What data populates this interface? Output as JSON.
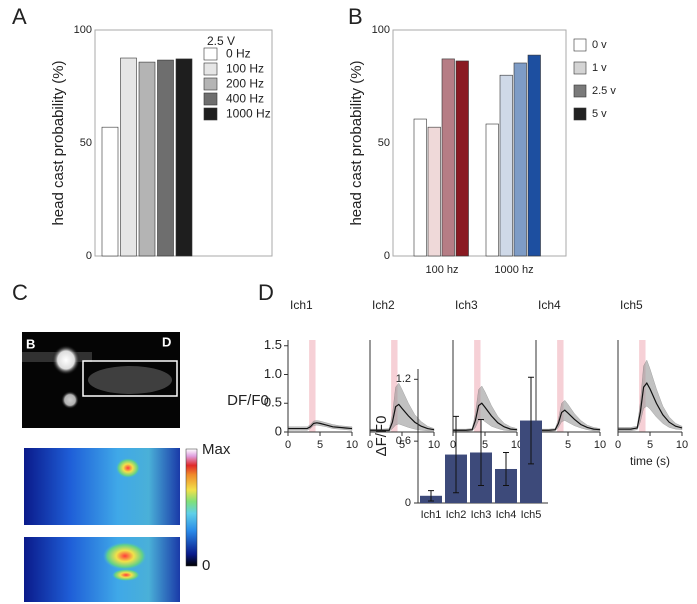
{
  "panel_labels": [
    "A",
    "B",
    "C",
    "D"
  ],
  "image_panel": {
    "markers": [
      "B",
      "D"
    ],
    "colorbar": [
      "Max",
      "0"
    ]
  },
  "chart_data": [
    {
      "type": "bar",
      "ylabel": "head cast probability (%)",
      "legend_title": "2.5 V",
      "categories": [
        "0 Hz",
        "100 Hz",
        "200 Hz",
        "400 Hz",
        "1000 Hz"
      ],
      "values": [
        57,
        87.6,
        85.8,
        86.7,
        87.2
      ],
      "colors": [
        "#ffffff",
        "#e6e6e6",
        "#b4b4b4",
        "#6e6e6e",
        "#1e1e1e"
      ],
      "ylim": [
        0,
        100
      ],
      "yticks": [
        0,
        50,
        100
      ]
    },
    {
      "type": "grouped-bar",
      "ylabel": "head cast probability (%)",
      "categories": [
        "100 hz",
        "1000 hz"
      ],
      "series": [
        {
          "name": "0 v",
          "color": "#ffffff",
          "bar_colors": [
            "#ffffff",
            "#ffffff"
          ],
          "values": [
            60.6,
            58.4
          ]
        },
        {
          "name": "1 v",
          "color": "#d4d4d4",
          "bar_colors": [
            "#efd9d9",
            "#cfd9e8"
          ],
          "values": [
            57,
            80
          ]
        },
        {
          "name": "2.5 v",
          "color": "#7a7a7a",
          "bar_colors": [
            "#b67d85",
            "#7e9cc6"
          ],
          "values": [
            87.2,
            85.4
          ]
        },
        {
          "name": "5 v",
          "color": "#222222",
          "bar_colors": [
            "#8a1a22",
            "#1d4fa0"
          ],
          "values": [
            86.3,
            88.9
          ]
        }
      ],
      "ylim": [
        0,
        100
      ],
      "yticks": [
        0,
        50,
        100
      ]
    },
    {
      "type": "line",
      "title": "Ich1",
      "ylabel": "DF/F0",
      "highlight_x": [
        3.3,
        4.3
      ],
      "x": [
        0,
        1,
        2,
        3,
        3.5,
        4,
        4.5,
        5,
        6,
        7,
        8,
        9,
        10
      ],
      "values": [
        0.06,
        0.06,
        0.06,
        0.06,
        0.09,
        0.15,
        0.16,
        0.15,
        0.12,
        0.09,
        0.08,
        0.07,
        0.06
      ],
      "upper": [
        0.09,
        0.09,
        0.09,
        0.09,
        0.13,
        0.19,
        0.2,
        0.19,
        0.16,
        0.13,
        0.11,
        0.1,
        0.09
      ],
      "lower": [
        0.03,
        0.03,
        0.03,
        0.03,
        0.06,
        0.11,
        0.12,
        0.11,
        0.09,
        0.06,
        0.05,
        0.04,
        0.03
      ],
      "xlim": [
        0,
        10
      ],
      "xticks": [
        0,
        5,
        10
      ],
      "ylim": [
        0,
        1.6
      ],
      "yticks": [
        0,
        0.5,
        {
          "value": 1,
          "label": "1.0"
        },
        1.5
      ]
    },
    {
      "type": "line",
      "title": "Ich2",
      "highlight_x": [
        3.3,
        4.3
      ],
      "x": [
        0,
        1,
        2,
        3,
        3.5,
        4,
        4.5,
        5,
        6,
        7,
        8,
        9,
        10
      ],
      "values": [
        0.03,
        0.03,
        0.03,
        0.03,
        0.17,
        0.44,
        0.48,
        0.41,
        0.28,
        0.17,
        0.1,
        0.06,
        0.04
      ],
      "upper": [
        0.05,
        0.05,
        0.05,
        0.06,
        0.3,
        0.78,
        0.85,
        0.74,
        0.5,
        0.3,
        0.18,
        0.1,
        0.06
      ],
      "lower": [
        0.01,
        0.01,
        0.01,
        0.01,
        0.06,
        0.12,
        0.14,
        0.12,
        0.08,
        0.05,
        0.03,
        0.02,
        0.02
      ],
      "xlim": [
        0,
        10
      ],
      "xticks": [
        0,
        5,
        10
      ],
      "ylim": [
        0,
        1.6
      ]
    },
    {
      "type": "line",
      "title": "Ich3",
      "highlight_x": [
        3.3,
        4.3
      ],
      "x": [
        0,
        1,
        2,
        3,
        3.5,
        4,
        4.5,
        5,
        6,
        7,
        8,
        9,
        10
      ],
      "values": [
        0.03,
        0.03,
        0.03,
        0.04,
        0.2,
        0.46,
        0.5,
        0.43,
        0.28,
        0.16,
        0.09,
        0.05,
        0.04
      ],
      "upper": [
        0.05,
        0.05,
        0.05,
        0.06,
        0.32,
        0.74,
        0.8,
        0.7,
        0.46,
        0.27,
        0.15,
        0.09,
        0.06
      ],
      "lower": [
        0.01,
        0.01,
        0.01,
        0.02,
        0.08,
        0.2,
        0.22,
        0.18,
        0.1,
        0.06,
        0.03,
        0.02,
        0.02
      ],
      "xlim": [
        0,
        10
      ],
      "xticks": [
        0,
        5,
        10
      ],
      "ylim": [
        0,
        1.6
      ]
    },
    {
      "type": "line",
      "title": "Ich4",
      "highlight_x": [
        3.3,
        4.3
      ],
      "x": [
        0,
        1,
        2,
        3,
        3.5,
        4,
        4.5,
        5,
        6,
        7,
        8,
        9,
        10
      ],
      "values": [
        0.03,
        0.03,
        0.03,
        0.04,
        0.15,
        0.34,
        0.38,
        0.33,
        0.22,
        0.13,
        0.08,
        0.05,
        0.04
      ],
      "upper": [
        0.05,
        0.05,
        0.05,
        0.06,
        0.22,
        0.5,
        0.55,
        0.48,
        0.32,
        0.2,
        0.12,
        0.08,
        0.06
      ],
      "lower": [
        0.01,
        0.01,
        0.01,
        0.02,
        0.08,
        0.18,
        0.2,
        0.17,
        0.11,
        0.07,
        0.04,
        0.02,
        0.02
      ],
      "xlim": [
        0,
        10
      ],
      "xticks": [
        0,
        5,
        10
      ],
      "ylim": [
        0,
        1.6
      ]
    },
    {
      "type": "line",
      "title": "Ich5",
      "xlabel": "time (s)",
      "highlight_x": [
        3.3,
        4.3
      ],
      "x": [
        0,
        1,
        2,
        3,
        3.5,
        4,
        4.5,
        5,
        6,
        7,
        8,
        9,
        10
      ],
      "values": [
        0.05,
        0.05,
        0.05,
        0.07,
        0.35,
        0.78,
        0.85,
        0.75,
        0.5,
        0.3,
        0.17,
        0.1,
        0.07
      ],
      "upper": [
        0.08,
        0.08,
        0.08,
        0.1,
        0.52,
        1.15,
        1.25,
        1.1,
        0.75,
        0.45,
        0.26,
        0.15,
        0.1
      ],
      "lower": [
        0.02,
        0.02,
        0.02,
        0.04,
        0.18,
        0.41,
        0.45,
        0.4,
        0.26,
        0.15,
        0.08,
        0.05,
        0.04
      ],
      "xlim": [
        0,
        10
      ],
      "xticks": [
        0,
        5,
        10
      ],
      "ylim": [
        0,
        1.6
      ]
    },
    {
      "type": "error-bar",
      "ylabel": "ΔF/F0",
      "categories": [
        "Ich1",
        "Ich2",
        "Ich3",
        "Ich4",
        "Ich5"
      ],
      "values": [
        0.07,
        0.47,
        0.49,
        0.33,
        0.8
      ],
      "errors": [
        0.05,
        0.37,
        0.32,
        0.16,
        0.42
      ],
      "color": "#3d4a7a",
      "ylim": [
        0,
        1.3
      ],
      "yticks": [
        0,
        0.6,
        1.2
      ]
    }
  ]
}
